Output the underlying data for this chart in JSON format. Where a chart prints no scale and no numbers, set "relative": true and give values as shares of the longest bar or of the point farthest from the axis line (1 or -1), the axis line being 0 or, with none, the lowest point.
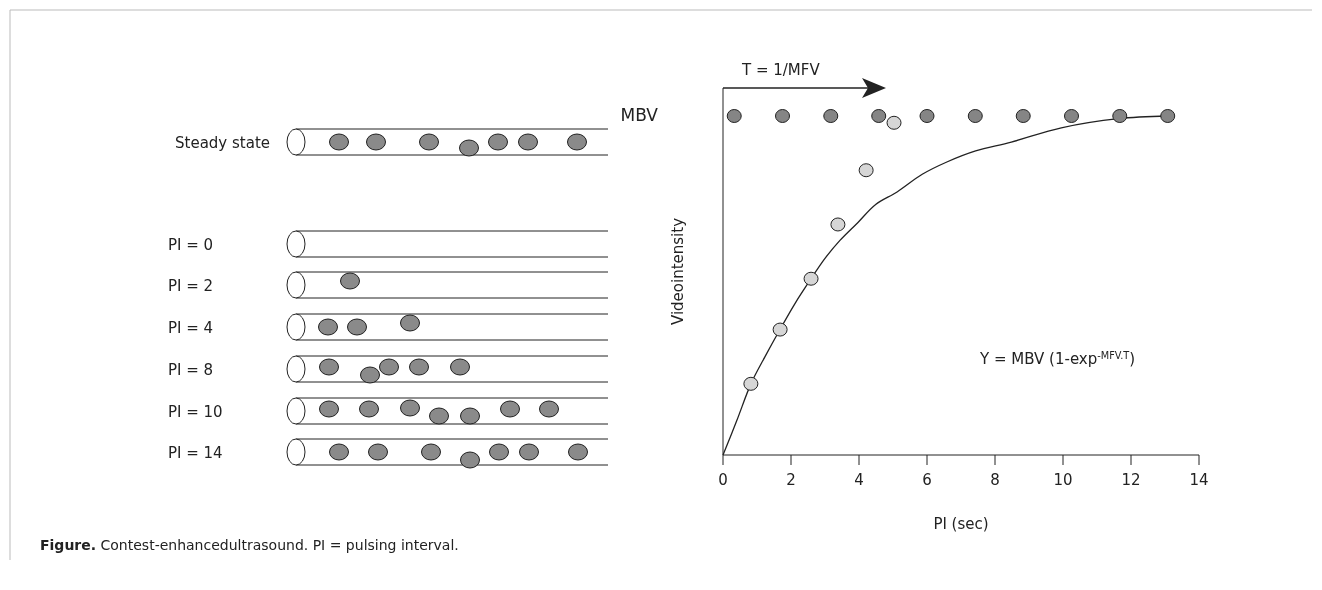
{
  "chart_data": {
    "type": "scatter",
    "relative": true,
    "xlabel": "PI (sec)",
    "ylabel": "Videointensity",
    "xlim": [
      0,
      14
    ],
    "xticks": [
      0,
      2,
      4,
      6,
      8,
      10,
      12,
      14
    ],
    "marker": "circle",
    "series": [
      {
        "type": "line",
        "marker": "none",
        "color": "#222222",
        "x": [
          0,
          0.4,
          0.83,
          1.24,
          1.68,
          2.13,
          2.59,
          3.0,
          3.44,
          3.97,
          4.49,
          5.12,
          5.86,
          6.6,
          7.43,
          8.48,
          9.95,
          11.63,
          13.08
        ],
        "values": [
          0,
          0.1,
          0.212,
          0.291,
          0.371,
          0.449,
          0.52,
          0.58,
          0.633,
          0.686,
          0.739,
          0.776,
          0.828,
          0.865,
          0.897,
          0.923,
          0.965,
          0.992,
          1.0
        ]
      },
      {
        "color": "#858585",
        "x": [
          0.33,
          1.75,
          3.17,
          4.58,
          6.0,
          7.42,
          8.83,
          10.25,
          11.67,
          13.08
        ],
        "values": [
          1,
          1,
          1,
          1,
          1,
          1,
          1,
          1,
          1,
          1
        ]
      },
      {
        "color": "#d6d6d6",
        "x": [
          0.82,
          1.68,
          2.59,
          3.38,
          4.21,
          5.03
        ],
        "values": [
          0.21,
          0.37,
          0.52,
          0.68,
          0.84,
          0.98
        ]
      }
    ],
    "annotations": [
      "T = 1/MFV",
      "MBV",
      "Y = MBV (1-exp$^{-MFV.T}$)",
      "Steady state",
      "PI = 0",
      "PI = 2",
      "PI = 4",
      "PI = 8",
      "PI = 10",
      "PI = 14",
      "Figure. Contest-enhancedultrasound. PI = pulsing interval."
    ]
  }
}
